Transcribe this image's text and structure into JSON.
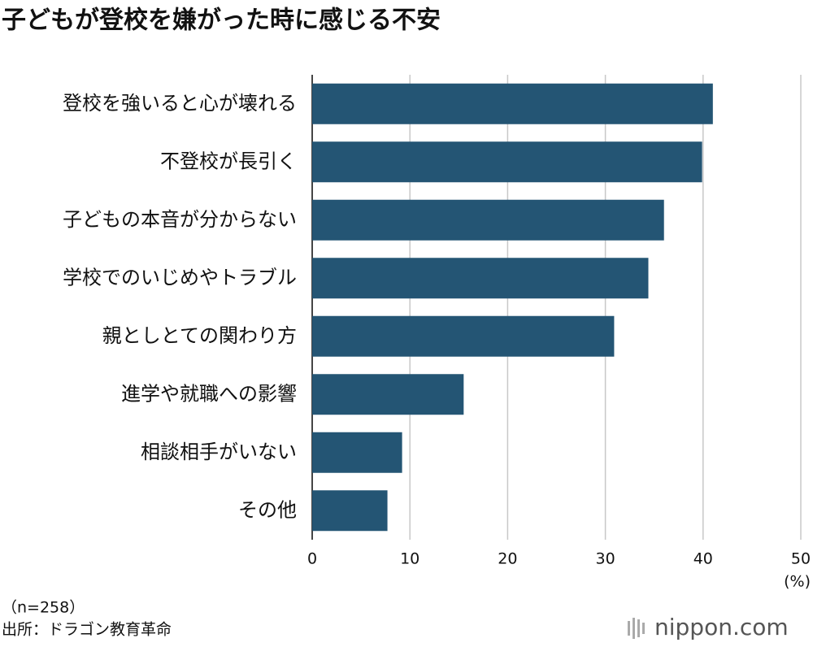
{
  "chart_data": {
    "type": "bar",
    "orientation": "horizontal",
    "title": "子どもが登校を嫌がった時に感じる不安",
    "categories": [
      "登校を強いると心が壊れる",
      "不登校が長引く",
      "子どもの本音が分からない",
      "学校でのいじめやトラブル",
      "親としとての関わり方",
      "進学や就職への影響",
      "相談相手がいない",
      "その他"
    ],
    "values": [
      41.0,
      39.9,
      36.0,
      34.4,
      30.9,
      15.5,
      9.2,
      7.7
    ],
    "color": "#245574",
    "xlim": [
      0,
      50
    ],
    "xticks": [
      0,
      10,
      20,
      30,
      40,
      50
    ],
    "grid": true,
    "unit_label": "(%)",
    "note": "（n=258）",
    "source": "出所：ドラゴン教育革命",
    "logo": "nippon.com"
  }
}
